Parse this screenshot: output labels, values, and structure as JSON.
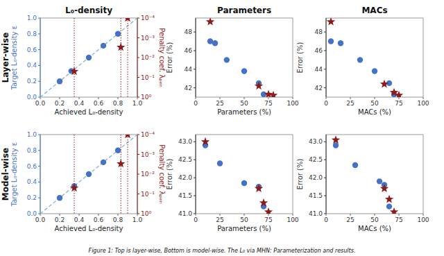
{
  "chart_data": [
    {
      "type": "scatter",
      "title": "L₀-density",
      "xlabel": "Achieved L₀-density",
      "ylabel": "Target L₀-density ε",
      "y2label": "Penalty coef. λₚₑₙ",
      "annotations": [
        "Layer-wise"
      ],
      "xlim": [
        0,
        1
      ],
      "ylim": [
        0,
        1
      ],
      "xticks": [
        {
          "value": 0,
          "label": "0.0"
        },
        0.2,
        0.4,
        0.6,
        0.8,
        {
          "value": 1,
          "label": "1.0"
        }
      ],
      "yticks": [
        {
          "value": 0,
          "label": "0.0"
        },
        0.2,
        0.4,
        0.6,
        0.8,
        {
          "value": 1,
          "label": "1.0"
        }
      ],
      "y2lim": [
        1,
        0.0001
      ],
      "y2ticks": [
        {
          "value": 0.0001,
          "label": "10⁻⁴"
        },
        {
          "value": 0.001,
          "label": "10⁻³"
        },
        {
          "value": 0.01,
          "label": "10⁻²"
        },
        {
          "value": 0.1,
          "label": "10⁻¹"
        },
        {
          "value": 1,
          "label": "10⁰"
        }
      ],
      "log": "y2",
      "grid": false,
      "series": [
        {
          "type": "line",
          "line_style": "dashed",
          "color": "#7BAFD4",
          "x": [
            0,
            1
          ],
          "values": [
            0,
            1
          ]
        },
        {
          "type": "scatter",
          "marker": "circle",
          "color": "#4472C4",
          "x": [
            0.2,
            0.32,
            0.5,
            0.65,
            0.8
          ],
          "values": [
            0.2,
            0.33,
            0.5,
            0.65,
            0.8
          ]
        },
        {
          "type": "scatter",
          "marker": "star",
          "line_style": "dotted",
          "color": "#8B1A1A",
          "axis": "y2",
          "x": [
            0.35,
            0.83,
            0.9
          ],
          "values": [
            0.05,
            0.003,
            0.0001
          ]
        }
      ]
    },
    {
      "type": "scatter",
      "title": "Parameters",
      "xlabel": "Parameters (%)",
      "ylabel": "Error (%)",
      "xlim": [
        0,
        100
      ],
      "ylim": [
        41.0,
        49.5
      ],
      "xticks": [
        0,
        25,
        50,
        75,
        100
      ],
      "yticks": [
        42,
        44,
        46,
        48
      ],
      "grid": false,
      "series": [
        {
          "type": "scatter",
          "marker": "circle",
          "color": "#4472C4",
          "x": [
            15,
            20,
            32,
            50,
            65,
            70
          ],
          "values": [
            47.0,
            46.8,
            45.0,
            43.8,
            42.5,
            41.3
          ]
        },
        {
          "type": "scatter",
          "marker": "star",
          "color": "#8B1A1A",
          "x": [
            15,
            65,
            75,
            80
          ],
          "values": [
            49.1,
            42.2,
            41.3,
            41.2
          ]
        }
      ]
    },
    {
      "type": "scatter",
      "title": "MACs",
      "xlabel": "MACs (%)",
      "ylabel": "Error (%)",
      "xlim": [
        0,
        100
      ],
      "ylim": [
        41.0,
        49.5
      ],
      "xticks": [
        0,
        25,
        50,
        75,
        100
      ],
      "yticks": [
        42,
        44,
        46,
        48
      ],
      "grid": false,
      "series": [
        {
          "type": "scatter",
          "marker": "circle",
          "color": "#4472C4",
          "x": [
            5,
            15,
            35,
            50,
            65,
            70
          ],
          "values": [
            47.0,
            46.8,
            45.0,
            43.8,
            42.5,
            41.3
          ]
        },
        {
          "type": "scatter",
          "marker": "star",
          "color": "#8B1A1A",
          "x": [
            5,
            60,
            70,
            75
          ],
          "values": [
            49.1,
            42.4,
            41.5,
            41.2
          ]
        }
      ]
    },
    {
      "type": "scatter",
      "xlabel": "Achieved L₀-density",
      "ylabel": "Target L₀-density ε",
      "y2label": "Penalty coef. λₚₑₙ",
      "annotations": [
        "Model-wise",
        "Figure 1: Top is layer-wise, Bottom is model-wise. The L₀ via MHN: Parameterization and results."
      ],
      "xlim": [
        0,
        1
      ],
      "ylim": [
        0,
        1
      ],
      "xticks": [
        {
          "value": 0,
          "label": "0.0"
        },
        0.2,
        0.4,
        0.6,
        0.8,
        {
          "value": 1,
          "label": "1.0"
        }
      ],
      "yticks": [
        {
          "value": 0,
          "label": "0.0"
        },
        0.2,
        0.4,
        0.6,
        0.8,
        {
          "value": 1,
          "label": "1.0"
        }
      ],
      "y2lim": [
        1,
        0.0001
      ],
      "y2ticks": [
        {
          "value": 0.0001,
          "label": "10⁻⁴"
        },
        {
          "value": 0.001,
          "label": "10⁻³"
        },
        {
          "value": 0.01,
          "label": "10⁻²"
        },
        {
          "value": 0.1,
          "label": "10⁻¹"
        },
        {
          "value": 1,
          "label": "10⁰"
        }
      ],
      "log": "y2",
      "grid": false,
      "series": [
        {
          "type": "line",
          "line_style": "dashed",
          "color": "#7BAFD4",
          "x": [
            0,
            1
          ],
          "values": [
            0,
            1
          ]
        },
        {
          "type": "scatter",
          "marker": "circle",
          "color": "#4472C4",
          "x": [
            0.2,
            0.35,
            0.5,
            0.65,
            0.8
          ],
          "values": [
            0.2,
            0.35,
            0.5,
            0.65,
            0.8
          ]
        },
        {
          "type": "scatter",
          "marker": "star",
          "line_style": "dotted",
          "color": "#8B1A1A",
          "axis": "y2",
          "x": [
            0.35,
            0.83,
            0.9
          ],
          "values": [
            0.05,
            0.003,
            0.0001
          ]
        }
      ]
    },
    {
      "type": "scatter",
      "xlabel": "Parameters (%)",
      "ylabel": "Error (%)",
      "xlim": [
        0,
        100
      ],
      "ylim": [
        41.0,
        43.2
      ],
      "xticks": [
        0,
        25,
        50,
        75,
        100
      ],
      "yticks": [
        {
          "value": 41,
          "label": "41.0"
        },
        41.5,
        {
          "value": 42,
          "label": "42.0"
        },
        42.5,
        {
          "value": 43,
          "label": "43.0"
        }
      ],
      "grid": false,
      "series": [
        {
          "type": "scatter",
          "marker": "circle",
          "color": "#4472C4",
          "x": [
            10,
            25,
            50,
            65,
            70
          ],
          "values": [
            42.9,
            42.4,
            41.85,
            41.75,
            41.2
          ]
        },
        {
          "type": "scatter",
          "marker": "star",
          "color": "#8B1A1A",
          "x": [
            10,
            65,
            70,
            75
          ],
          "values": [
            43.0,
            41.7,
            41.3,
            41.05
          ]
        }
      ]
    },
    {
      "type": "scatter",
      "xlabel": "MACs (%)",
      "ylabel": "Error (%)",
      "xlim": [
        0,
        100
      ],
      "ylim": [
        41.0,
        43.2
      ],
      "xticks": [
        0,
        25,
        50,
        75,
        100
      ],
      "yticks": [
        {
          "value": 41,
          "label": "41.0"
        },
        41.5,
        {
          "value": 42,
          "label": "42.0"
        },
        42.5,
        {
          "value": 43,
          "label": "43.0"
        }
      ],
      "grid": false,
      "series": [
        {
          "type": "scatter",
          "marker": "circle",
          "color": "#4472C4",
          "x": [
            10,
            30,
            55,
            60,
            65
          ],
          "values": [
            42.9,
            42.35,
            41.9,
            41.8,
            41.2
          ]
        },
        {
          "type": "scatter",
          "marker": "star",
          "color": "#8B1A1A",
          "x": [
            10,
            60,
            65,
            70
          ],
          "values": [
            43.05,
            41.7,
            41.4,
            41.05
          ]
        }
      ]
    }
  ]
}
